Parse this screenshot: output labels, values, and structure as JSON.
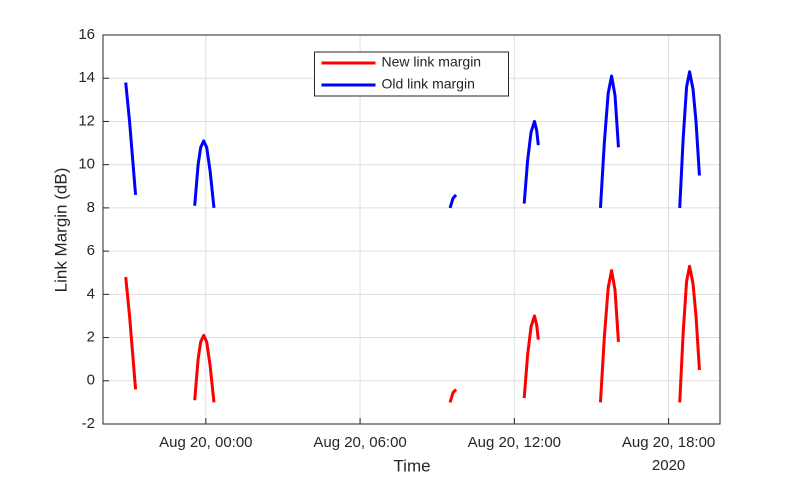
{
  "chart_data": {
    "type": "line",
    "xlabel": "Time",
    "ylabel": "Link Margin (dB)",
    "x_year_label": "2020",
    "x": [
      "2020-08-19T20:53",
      "2020-08-19T21:02",
      "2020-08-19T21:09",
      "2020-08-19T21:16",
      "2020-08-19T22:30",
      "2020-08-19T23:34",
      "2020-08-19T23:42",
      "2020-08-19T23:48",
      "2020-08-19T23:55",
      "2020-08-20T00:02",
      "2020-08-20T00:10",
      "2020-08-20T00:19",
      "2020-08-20T05:00",
      "2020-08-20T09:30",
      "2020-08-20T09:37",
      "2020-08-20T09:44",
      "2020-08-20T11:00",
      "2020-08-20T12:23",
      "2020-08-20T12:31",
      "2020-08-20T12:39",
      "2020-08-20T12:47",
      "2020-08-20T12:52",
      "2020-08-20T12:56",
      "2020-08-20T14:00",
      "2020-08-20T15:21",
      "2020-08-20T15:30",
      "2020-08-20T15:39",
      "2020-08-20T15:47",
      "2020-08-20T15:55",
      "2020-08-20T16:03",
      "2020-08-20T17:00",
      "2020-08-20T18:26",
      "2020-08-20T18:34",
      "2020-08-20T18:42",
      "2020-08-20T18:49",
      "2020-08-20T18:57",
      "2020-08-20T19:04",
      "2020-08-20T19:12"
    ],
    "series": [
      {
        "name": "New link margin",
        "color": "#ff0000",
        "values": [
          4.8,
          3.0,
          1.3,
          -0.4,
          null,
          -0.9,
          1.0,
          1.8,
          2.1,
          1.8,
          0.7,
          -1.0,
          null,
          -1.0,
          -0.55,
          -0.4,
          null,
          -0.8,
          1.2,
          2.5,
          3.0,
          2.6,
          1.9,
          null,
          -1.0,
          2.0,
          4.3,
          5.1,
          4.2,
          1.8,
          null,
          -1.0,
          2.2,
          4.6,
          5.3,
          4.5,
          3.0,
          0.5
        ]
      },
      {
        "name": "Old link margin",
        "color": "#0000ff",
        "values": [
          13.8,
          12.0,
          10.3,
          8.6,
          null,
          8.1,
          10.0,
          10.8,
          11.1,
          10.8,
          9.7,
          8.0,
          null,
          8.0,
          8.45,
          8.6,
          null,
          8.2,
          10.2,
          11.5,
          12.0,
          11.6,
          10.9,
          null,
          8.0,
          11.0,
          13.3,
          14.1,
          13.2,
          10.8,
          null,
          8.0,
          11.2,
          13.6,
          14.3,
          13.5,
          12.0,
          9.5
        ]
      }
    ],
    "xlim": [
      "2020-08-19T20:00",
      "2020-08-20T20:00"
    ],
    "xticks": [
      {
        "value": "2020-08-20T00:00",
        "label": "Aug 20, 00:00"
      },
      {
        "value": "2020-08-20T06:00",
        "label": "Aug 20, 06:00"
      },
      {
        "value": "2020-08-20T12:00",
        "label": "Aug 20, 12:00"
      },
      {
        "value": "2020-08-20T18:00",
        "label": "Aug 20, 18:00"
      }
    ],
    "ylim": [
      -2,
      16
    ],
    "yticks": [
      -2,
      0,
      2,
      4,
      6,
      8,
      10,
      12,
      14,
      16
    ],
    "grid": true,
    "legend": "north"
  }
}
